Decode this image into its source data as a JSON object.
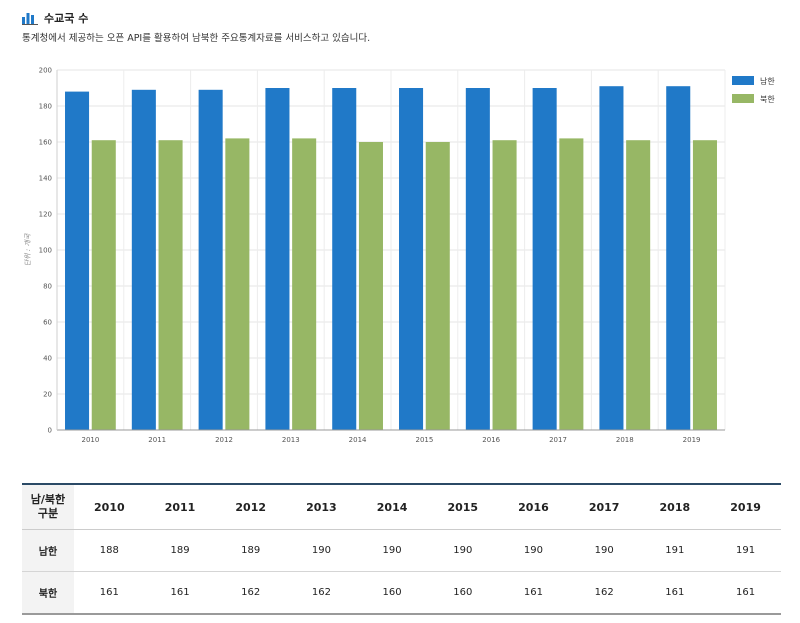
{
  "header": {
    "title": "수교국 수",
    "description": "통계청에서 제공하는 오픈 API를 활용하여 남북한 주요통계자료를 서비스하고 있습니다."
  },
  "colors": {
    "south": "#2079c8",
    "north": "#97b765"
  },
  "chart_data": {
    "type": "bar",
    "categories": [
      "2010",
      "2011",
      "2012",
      "2013",
      "2014",
      "2015",
      "2016",
      "2017",
      "2018",
      "2019"
    ],
    "series": [
      {
        "name": "남한",
        "values": [
          188,
          189,
          189,
          190,
          190,
          190,
          190,
          190,
          191,
          191
        ]
      },
      {
        "name": "북한",
        "values": [
          161,
          161,
          162,
          162,
          160,
          160,
          161,
          162,
          161,
          161
        ]
      }
    ],
    "ylabel": "단위 : 개국",
    "ylim": [
      0,
      200
    ],
    "yticks": [
      0,
      20,
      40,
      60,
      80,
      100,
      120,
      140,
      160,
      180,
      200
    ],
    "grid": true,
    "legend_position": "top-right"
  },
  "table": {
    "corner_label": [
      "남/북한",
      "구분"
    ],
    "columns": [
      "2010",
      "2011",
      "2012",
      "2013",
      "2014",
      "2015",
      "2016",
      "2017",
      "2018",
      "2019"
    ],
    "rows": [
      {
        "label": "남한",
        "values": [
          "188",
          "189",
          "189",
          "190",
          "190",
          "190",
          "190",
          "190",
          "191",
          "191"
        ]
      },
      {
        "label": "북한",
        "values": [
          "161",
          "161",
          "162",
          "162",
          "160",
          "160",
          "161",
          "162",
          "161",
          "161"
        ]
      }
    ]
  }
}
